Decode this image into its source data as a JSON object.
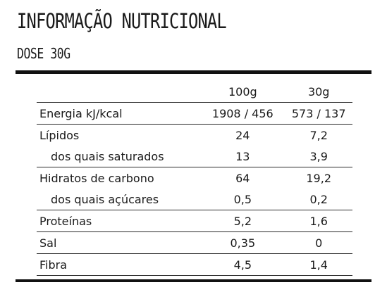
{
  "header": {
    "title": "INFORMAÇÃO NUTRICIONAL",
    "subtitle": "DOSE 30G"
  },
  "table": {
    "columns": [
      "",
      "100g",
      "30g"
    ],
    "rows": [
      {
        "label": "Energia kJ/kcal",
        "v100": "1908 / 456",
        "v30": "573 / 137"
      },
      {
        "label": "Lípidos",
        "v100": "24",
        "v30": "7,2"
      },
      {
        "label": "dos quais saturados",
        "v100": "13",
        "v30": "3,9"
      },
      {
        "label": "Hidratos de carbono",
        "v100": "64",
        "v30": "19,2"
      },
      {
        "label": "dos quais açúcares",
        "v100": "0,5",
        "v30": "0,2"
      },
      {
        "label": "Proteínas",
        "v100": "5,2",
        "v30": "1,6"
      },
      {
        "label": "Sal",
        "v100": "0,35",
        "v30": "0"
      },
      {
        "label": "Fibra",
        "v100": "4,5",
        "v30": "1,4"
      }
    ]
  }
}
